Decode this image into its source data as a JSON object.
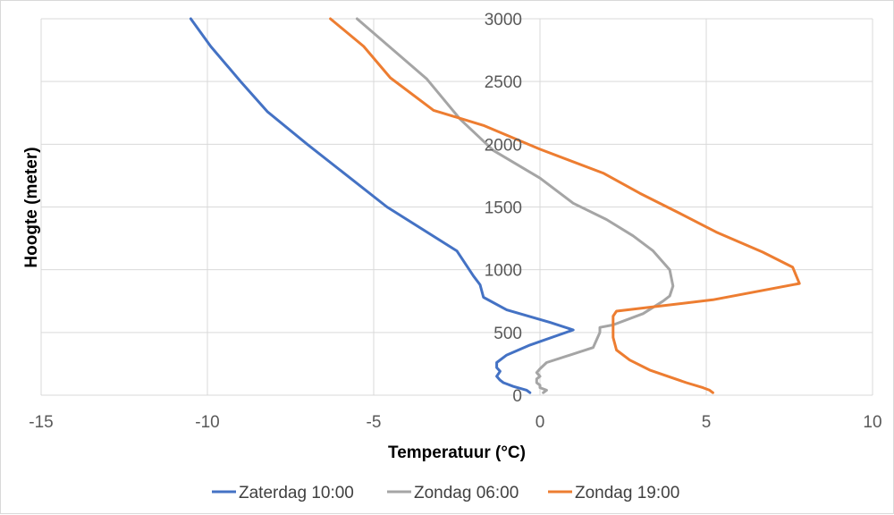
{
  "chart_data": {
    "type": "line",
    "title": "",
    "xlabel": "Temperatuur (°C)",
    "ylabel": "Hoogte (meter)",
    "xlim": [
      -15,
      10
    ],
    "ylim": [
      0,
      3000
    ],
    "x_ticks": [
      -15,
      -10,
      -5,
      0,
      5,
      10
    ],
    "x_tick_labels": [
      "-15",
      "-10",
      "-5",
      "0",
      "5",
      "10"
    ],
    "y_ticks": [
      0,
      500,
      1000,
      1500,
      2000,
      2500,
      3000
    ],
    "y_tick_labels": [
      "0",
      "500",
      "1000",
      "1500",
      "2000",
      "2500",
      "3000"
    ],
    "grid": "vertical-and-horizontal",
    "legend_position": "bottom",
    "series": [
      {
        "name": "Zaterdag 10:00",
        "color": "#4472C4",
        "points": [
          [
            -0.3,
            20
          ],
          [
            -0.4,
            40
          ],
          [
            -0.8,
            70
          ],
          [
            -1.0,
            90
          ],
          [
            -1.1,
            100
          ],
          [
            -1.2,
            120
          ],
          [
            -1.3,
            150
          ],
          [
            -1.2,
            190
          ],
          [
            -1.3,
            220
          ],
          [
            -1.3,
            260
          ],
          [
            -1.0,
            320
          ],
          [
            -0.3,
            400
          ],
          [
            1.0,
            520
          ],
          [
            0.3,
            580
          ],
          [
            -1.0,
            680
          ],
          [
            -1.7,
            780
          ],
          [
            -1.8,
            880
          ],
          [
            -2.0,
            950
          ],
          [
            -2.5,
            1150
          ],
          [
            -4.6,
            1500
          ],
          [
            -7.0,
            2000
          ],
          [
            -8.2,
            2260
          ],
          [
            -9.0,
            2500
          ],
          [
            -9.9,
            2780
          ],
          [
            -10.5,
            3000
          ]
        ]
      },
      {
        "name": "Zondag 06:00",
        "color": "#A5A5A5",
        "points": [
          [
            0.1,
            20
          ],
          [
            0.2,
            40
          ],
          [
            0.0,
            60
          ],
          [
            0.0,
            80
          ],
          [
            -0.1,
            100
          ],
          [
            -0.1,
            130
          ],
          [
            0.0,
            150
          ],
          [
            -0.1,
            180
          ],
          [
            0.0,
            210
          ],
          [
            0.2,
            260
          ],
          [
            1.6,
            380
          ],
          [
            1.8,
            500
          ],
          [
            1.8,
            540
          ],
          [
            2.2,
            560
          ],
          [
            3.1,
            650
          ],
          [
            3.7,
            750
          ],
          [
            3.9,
            790
          ],
          [
            4.0,
            870
          ],
          [
            3.9,
            1000
          ],
          [
            3.4,
            1150
          ],
          [
            2.8,
            1270
          ],
          [
            2.0,
            1400
          ],
          [
            1.0,
            1530
          ],
          [
            0.0,
            1730
          ],
          [
            -1.4,
            1950
          ],
          [
            -2.4,
            2200
          ],
          [
            -3.4,
            2520
          ],
          [
            -5.5,
            3000
          ]
        ]
      },
      {
        "name": "Zondag 19:00",
        "color": "#ED7D31",
        "points": [
          [
            5.2,
            20
          ],
          [
            5.1,
            40
          ],
          [
            4.9,
            60
          ],
          [
            4.4,
            100
          ],
          [
            3.3,
            200
          ],
          [
            2.7,
            280
          ],
          [
            2.3,
            360
          ],
          [
            2.2,
            460
          ],
          [
            2.2,
            520
          ],
          [
            2.2,
            580
          ],
          [
            2.2,
            630
          ],
          [
            2.3,
            670
          ],
          [
            5.2,
            760
          ],
          [
            7.8,
            890
          ],
          [
            7.6,
            1020
          ],
          [
            6.7,
            1140
          ],
          [
            5.3,
            1300
          ],
          [
            4.2,
            1450
          ],
          [
            3.0,
            1610
          ],
          [
            1.9,
            1770
          ],
          [
            0.0,
            1960
          ],
          [
            -1.7,
            2150
          ],
          [
            -3.2,
            2270
          ],
          [
            -4.5,
            2530
          ],
          [
            -5.3,
            2780
          ],
          [
            -6.3,
            3000
          ]
        ]
      }
    ]
  }
}
